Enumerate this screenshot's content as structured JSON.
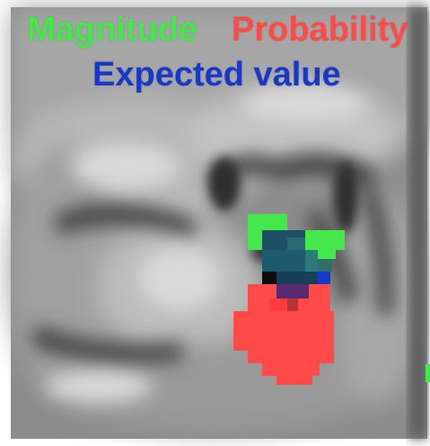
{
  "legend": {
    "magnitude": {
      "label": "Magnitude",
      "color": "#44e84a"
    },
    "probability": {
      "label": "Probability",
      "color": "#ff4a4a"
    },
    "expected_value": {
      "label": "Expected value",
      "color": "#1838c8"
    }
  },
  "image": {
    "kind": "grayscale brain MRI slice with colored voxel activation overlay",
    "overlay_colors": {
      "magnitude": "#44e84a",
      "probability": "#ff4a4a",
      "expected_value": "#1838c8",
      "overlap": "#1e5a6e"
    }
  }
}
